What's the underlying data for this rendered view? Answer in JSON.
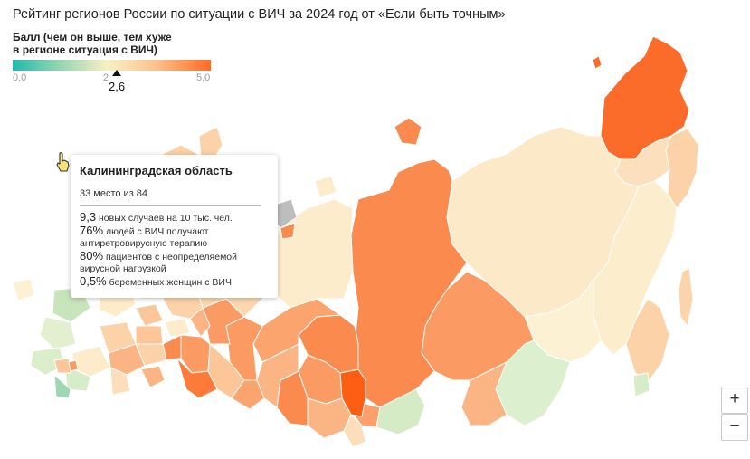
{
  "title": "Рейтинг регионов России по ситуации с ВИЧ за 2024 год от «Если быть точным»",
  "legend": {
    "title_line1": "Балл (чем он выше, тем хуже",
    "title_line2": "в регионе ситуация с ВИЧ)",
    "min_label": "0,0",
    "mid_label": "2",
    "max_label": "5,0",
    "marker_label": "2,6",
    "marker_value": 2.6,
    "colors": {
      "low": "#20b9a9",
      "mid": "#f7f0c6",
      "high": "#fd6b24"
    }
  },
  "tooltip": {
    "region": "Калининградская область",
    "rank": "33 место из 84",
    "stats": [
      {
        "value": "9,3",
        "text": "новых случаев на 10 тыс. чел."
      },
      {
        "value": "76%",
        "text": "людей с ВИЧ получают антиретровирусную терапию"
      },
      {
        "value": "80%",
        "text": "пациентов с неопределяемой вирусной нагрузкой"
      },
      {
        "value": "0,5%",
        "text": "беременных женщин с ВИЧ"
      }
    ]
  },
  "zoom": {
    "in_label": "+",
    "out_label": "−"
  },
  "icons": {
    "cursor": "hand-pointer-icon"
  }
}
